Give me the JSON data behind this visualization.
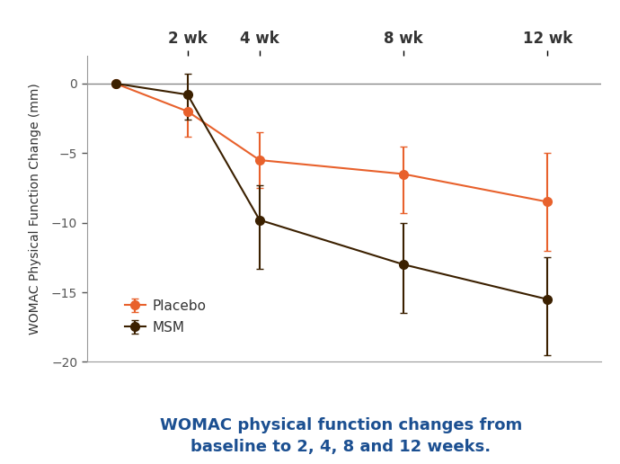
{
  "x_values": [
    0,
    2,
    4,
    8,
    12
  ],
  "placebo_y": [
    0,
    -2.0,
    -5.5,
    -6.5,
    -8.5
  ],
  "placebo_yerr_low": [
    0,
    1.8,
    2.0,
    2.8,
    3.5
  ],
  "placebo_yerr_high": [
    0,
    1.0,
    2.0,
    2.0,
    3.5
  ],
  "msm_y": [
    0,
    -0.8,
    -9.8,
    -13.0,
    -15.5
  ],
  "msm_yerr_low": [
    0,
    1.8,
    3.5,
    3.5,
    4.0
  ],
  "msm_yerr_high": [
    0,
    1.5,
    2.5,
    3.0,
    3.0
  ],
  "placebo_color": "#E8612C",
  "msm_color": "#3B2000",
  "x_tick_positions": [
    2,
    4,
    8,
    12
  ],
  "x_tick_labels": [
    "2 wk",
    "4 wk",
    "8 wk",
    "12 wk"
  ],
  "ylabel": "WOMAC Physical Function Change (mm)",
  "ylim": [
    -20,
    2
  ],
  "y_ticks": [
    0,
    -5,
    -10,
    -15,
    -20
  ],
  "caption_line1": "WOMAC physical function changes from",
  "caption_line2": "baseline to 2, 4, 8 and 12 weeks.",
  "caption_color": "#1B4F91",
  "legend_placebo": "Placebo",
  "legend_msm": "MSM",
  "marker_size": 7,
  "linewidth": 1.5,
  "capsize": 3,
  "elinewidth": 1.5,
  "bg_color": "#FFFFFF",
  "spine_color": "#AAAAAA",
  "tick_label_color": "#555555",
  "x_tick_fontsize": 12,
  "y_tick_fontsize": 10,
  "ylabel_fontsize": 10,
  "legend_fontsize": 11,
  "caption_fontsize": 13
}
